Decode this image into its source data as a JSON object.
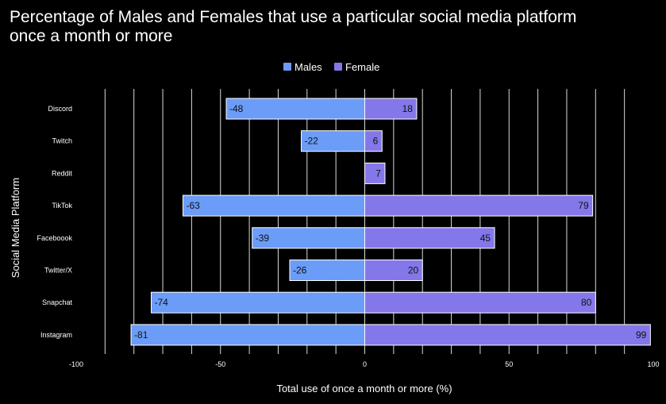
{
  "chart_data": {
    "type": "bar",
    "orientation": "horizontal",
    "title_lines": [
      "Percentage of Males and Females that use a particular social media platform",
      "once a month or more"
    ],
    "xlabel": "Total use of once a month or more (%)",
    "ylabel": "Social Media Platform",
    "xlim": [
      -100,
      100
    ],
    "xticks": [
      -100,
      -50,
      0,
      50,
      100
    ],
    "grid": true,
    "legend_position": "top",
    "categories": [
      "Discord",
      "Twitch",
      "Reddit",
      "TikTok",
      "Faceboook",
      "Twitter/X",
      "Snapchat",
      "Instagram"
    ],
    "series": [
      {
        "name": "Males",
        "color": "#6b9cf7",
        "values": [
          -48,
          -22,
          null,
          -63,
          -39,
          -26,
          -74,
          -81
        ]
      },
      {
        "name": "Female",
        "color": "#8477ea",
        "values": [
          18,
          6,
          7,
          79,
          45,
          20,
          80,
          99
        ]
      }
    ]
  }
}
